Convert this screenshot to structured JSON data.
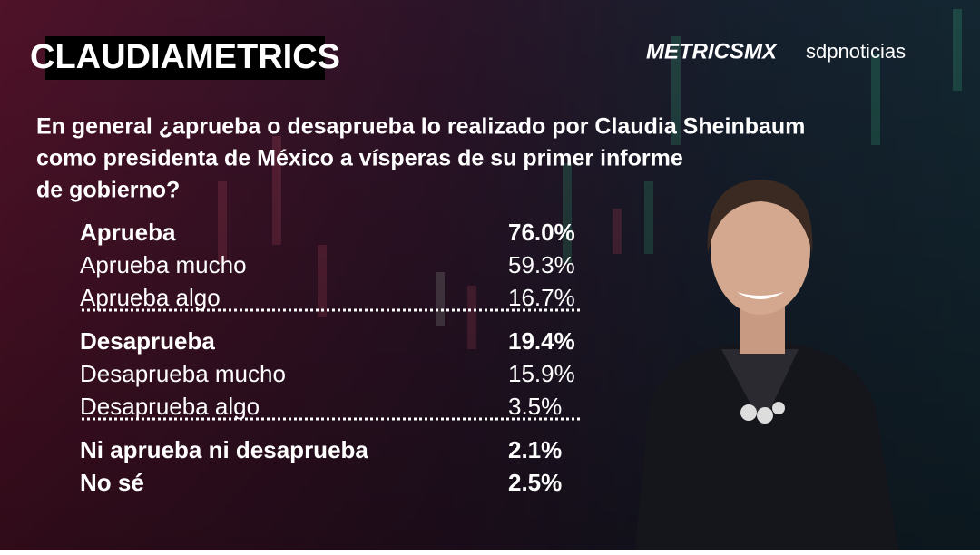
{
  "header": {
    "badge": "CLAUDIAMETRICS",
    "logo": "METRICSMX",
    "publisher": "sdpnoticias"
  },
  "question": {
    "lines": [
      "En general ¿aprueba o desaprueba lo realizado por Claudia Sheinbaum",
      "como presidenta de México a vísperas de su primer informe",
      "de gobierno?"
    ]
  },
  "groups": [
    {
      "rows": [
        {
          "label": "Aprueba",
          "value": "76.0%",
          "bold": true
        },
        {
          "label": "Aprueba  mucho",
          "value": "59.3%",
          "bold": false
        },
        {
          "label": "Aprueba algo",
          "value": "16.7%",
          "bold": false
        }
      ]
    },
    {
      "rows": [
        {
          "label": "Desaprueba",
          "value": "19.4%",
          "bold": true
        },
        {
          "label": "Desaprueba mucho",
          "value": "15.9%",
          "bold": false
        },
        {
          "label": "Desaprueba algo",
          "value": "3.5%",
          "bold": false
        }
      ]
    },
    {
      "rows": [
        {
          "label": "Ni aprueba ni desaprueba",
          "value": "2.1%",
          "bold": true
        },
        {
          "label": "No sé",
          "value": "2.5%",
          "bold": true
        }
      ]
    }
  ]
}
